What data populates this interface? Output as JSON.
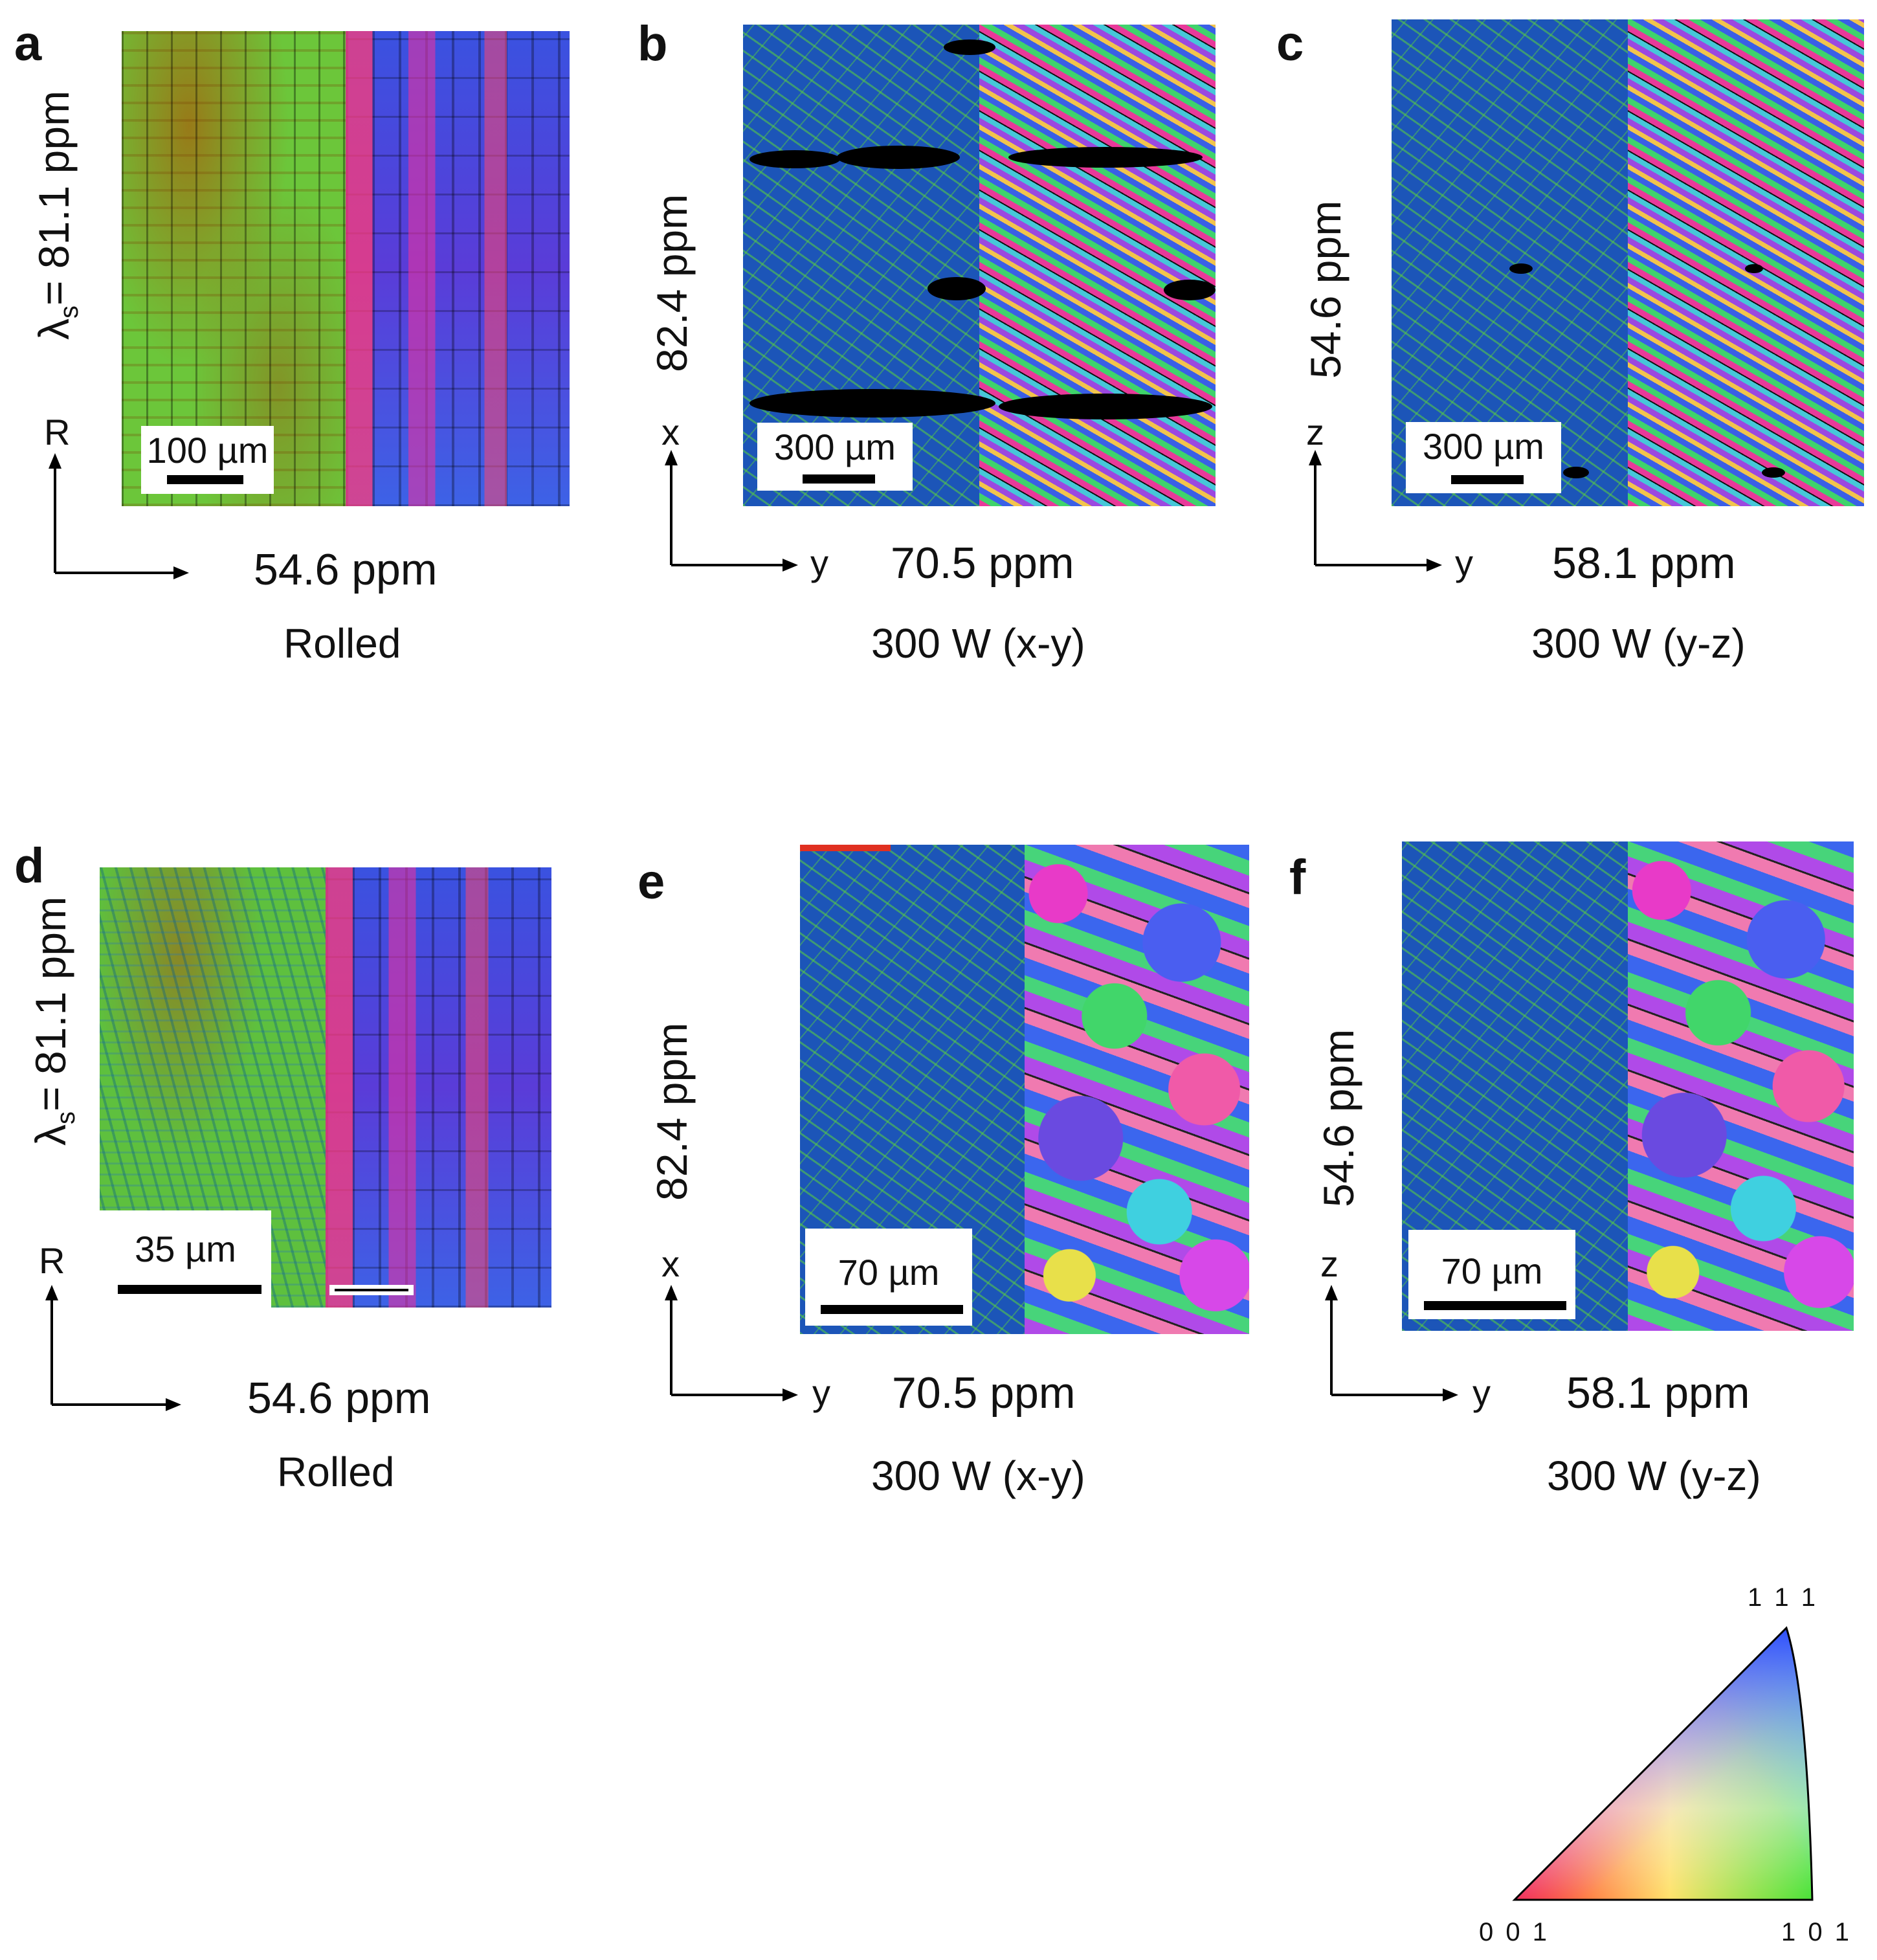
{
  "panels": [
    {
      "letter": "a",
      "ylabel_prefix": "λ",
      "ylabel_sub": "s",
      "ylabel_rest": "= 81.1 ppm",
      "xlabel": "54.6 ppm",
      "condition": "Rolled",
      "axis_v": "R",
      "axis_h": "",
      "scale": "100 µm"
    },
    {
      "letter": "b",
      "ylabel_prefix": "",
      "ylabel_sub": "",
      "ylabel_rest": "82.4 ppm",
      "xlabel": "70.5 ppm",
      "condition": "300 W (x-y)",
      "axis_v": "x",
      "axis_h": "y",
      "scale": "300 µm"
    },
    {
      "letter": "c",
      "ylabel_prefix": "",
      "ylabel_sub": "",
      "ylabel_rest": "54.6 ppm",
      "xlabel": "58.1 ppm",
      "condition": "300 W (y-z)",
      "axis_v": "z",
      "axis_h": "y",
      "scale": "300 µm"
    },
    {
      "letter": "d",
      "ylabel_prefix": "λ",
      "ylabel_sub": "s",
      "ylabel_rest": "= 81.1 ppm",
      "xlabel": "54.6 ppm",
      "condition": "Rolled",
      "axis_v": "R",
      "axis_h": "",
      "scale": "35 µm"
    },
    {
      "letter": "e",
      "ylabel_prefix": "",
      "ylabel_sub": "",
      "ylabel_rest": "82.4 ppm",
      "xlabel": "70.5 ppm",
      "condition": "300 W (x-y)",
      "axis_v": "x",
      "axis_h": "y",
      "scale": "70 µm"
    },
    {
      "letter": "f",
      "ylabel_prefix": "",
      "ylabel_sub": "",
      "ylabel_rest": "54.6 ppm",
      "xlabel": "58.1 ppm",
      "condition": "300 W (y-z)",
      "axis_v": "z",
      "axis_h": "y",
      "scale": "70 µm"
    }
  ],
  "ipf_legend": {
    "top": "1 1 1",
    "bottom_left": "0 0 1",
    "bottom_right": "1 0 1"
  }
}
